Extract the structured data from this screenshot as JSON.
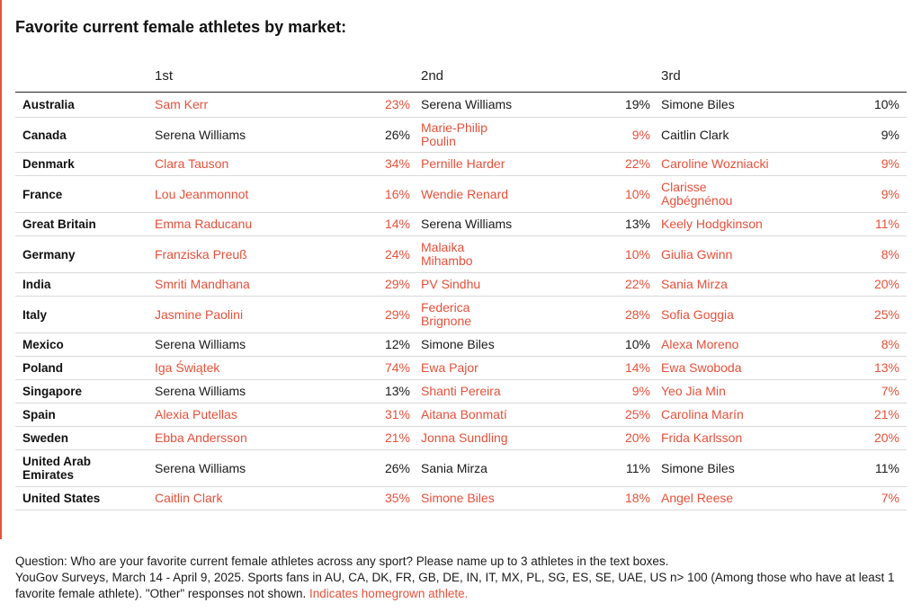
{
  "chart_data": {
    "type": "table",
    "title": "Favorite current female athletes by market:",
    "columns": [
      "1st",
      "2nd",
      "3rd"
    ],
    "highlight_color": "#e8503a",
    "rows": [
      {
        "market": "Australia",
        "entries": [
          {
            "name": "Sam Kerr",
            "pct": "23%",
            "homegrown": true
          },
          {
            "name": "Serena Williams",
            "pct": "19%",
            "homegrown": false
          },
          {
            "name": "Simone Biles",
            "pct": "10%",
            "homegrown": false
          }
        ]
      },
      {
        "market": "Canada",
        "entries": [
          {
            "name": "Serena Williams",
            "pct": "26%",
            "homegrown": false
          },
          {
            "name": "Marie-Philip Poulin",
            "pct": "9%",
            "homegrown": true
          },
          {
            "name": "Caitlin Clark",
            "pct": "9%",
            "homegrown": false
          }
        ]
      },
      {
        "market": "Denmark",
        "entries": [
          {
            "name": "Clara Tauson",
            "pct": "34%",
            "homegrown": true
          },
          {
            "name": "Pernille Harder",
            "pct": "22%",
            "homegrown": true
          },
          {
            "name": "Caroline Wozniacki",
            "pct": "9%",
            "homegrown": true
          }
        ]
      },
      {
        "market": "France",
        "entries": [
          {
            "name": "Lou Jeanmonnot",
            "pct": "16%",
            "homegrown": true
          },
          {
            "name": "Wendie Renard",
            "pct": "10%",
            "homegrown": true
          },
          {
            "name": "Clarisse Agbégnénou",
            "pct": "9%",
            "homegrown": true
          }
        ]
      },
      {
        "market": "Great Britain",
        "entries": [
          {
            "name": "Emma Raducanu",
            "pct": "14%",
            "homegrown": true
          },
          {
            "name": "Serena Williams",
            "pct": "13%",
            "homegrown": false
          },
          {
            "name": "Keely Hodgkinson",
            "pct": "11%",
            "homegrown": true
          }
        ]
      },
      {
        "market": "Germany",
        "entries": [
          {
            "name": "Franziska Preuß",
            "pct": "24%",
            "homegrown": true
          },
          {
            "name": "Malaika Mihambo",
            "pct": "10%",
            "homegrown": true
          },
          {
            "name": "Giulia Gwinn",
            "pct": "8%",
            "homegrown": true
          }
        ]
      },
      {
        "market": "India",
        "entries": [
          {
            "name": "Smriti Mandhana",
            "pct": "29%",
            "homegrown": true
          },
          {
            "name": "PV Sindhu",
            "pct": "22%",
            "homegrown": true
          },
          {
            "name": "Sania Mirza",
            "pct": "20%",
            "homegrown": true
          }
        ]
      },
      {
        "market": "Italy",
        "entries": [
          {
            "name": "Jasmine Paolini",
            "pct": "29%",
            "homegrown": true
          },
          {
            "name": "Federica Brignone",
            "pct": "28%",
            "homegrown": true
          },
          {
            "name": "Sofia Goggia",
            "pct": "25%",
            "homegrown": true
          }
        ]
      },
      {
        "market": "Mexico",
        "entries": [
          {
            "name": "Serena Williams",
            "pct": "12%",
            "homegrown": false
          },
          {
            "name": "Simone Biles",
            "pct": "10%",
            "homegrown": false
          },
          {
            "name": "Alexa Moreno",
            "pct": "8%",
            "homegrown": true
          }
        ]
      },
      {
        "market": "Poland",
        "entries": [
          {
            "name": "Iga Świątek",
            "pct": "74%",
            "homegrown": true
          },
          {
            "name": "Ewa Pajor",
            "pct": "14%",
            "homegrown": true
          },
          {
            "name": "Ewa Swoboda",
            "pct": "13%",
            "homegrown": true
          }
        ]
      },
      {
        "market": "Singapore",
        "entries": [
          {
            "name": "Serena Williams",
            "pct": "13%",
            "homegrown": false
          },
          {
            "name": "Shanti Pereira",
            "pct": "9%",
            "homegrown": true
          },
          {
            "name": "Yeo Jia Min",
            "pct": "7%",
            "homegrown": true
          }
        ]
      },
      {
        "market": "Spain",
        "entries": [
          {
            "name": "Alexia Putellas",
            "pct": "31%",
            "homegrown": true
          },
          {
            "name": "Aitana Bonmatí",
            "pct": "25%",
            "homegrown": true
          },
          {
            "name": "Carolina Marín",
            "pct": "21%",
            "homegrown": true
          }
        ]
      },
      {
        "market": "Sweden",
        "entries": [
          {
            "name": "Ebba Andersson",
            "pct": "21%",
            "homegrown": true
          },
          {
            "name": "Jonna Sundling",
            "pct": "20%",
            "homegrown": true
          },
          {
            "name": "Frida Karlsson",
            "pct": "20%",
            "homegrown": true
          }
        ]
      },
      {
        "market": "United Arab Emirates",
        "entries": [
          {
            "name": "Serena Williams",
            "pct": "26%",
            "homegrown": false
          },
          {
            "name": "Sania Mirza",
            "pct": "11%",
            "homegrown": false
          },
          {
            "name": "Simone Biles",
            "pct": "11%",
            "homegrown": false
          }
        ]
      },
      {
        "market": "United States",
        "entries": [
          {
            "name": "Caitlin Clark",
            "pct": "35%",
            "homegrown": true
          },
          {
            "name": "Simone Biles",
            "pct": "18%",
            "homegrown": true
          },
          {
            "name": "Angel Reese",
            "pct": "7%",
            "homegrown": true
          }
        ]
      }
    ]
  },
  "footnote": {
    "question": "Question: Who are your favorite current female athletes across any sport? Please name up to 3 athletes in the text boxes.",
    "source": "YouGov Surveys, March 14 - April 9, 2025. Sports fans in AU, CA, DK, FR, GB, DE, IN, IT, MX, PL, SG, ES, SE, UAE, US n> 100 (Among those who have at least 1 favorite female athlete). \"Other\" responses not shown.",
    "legend": "Indicates homegrown athlete."
  }
}
